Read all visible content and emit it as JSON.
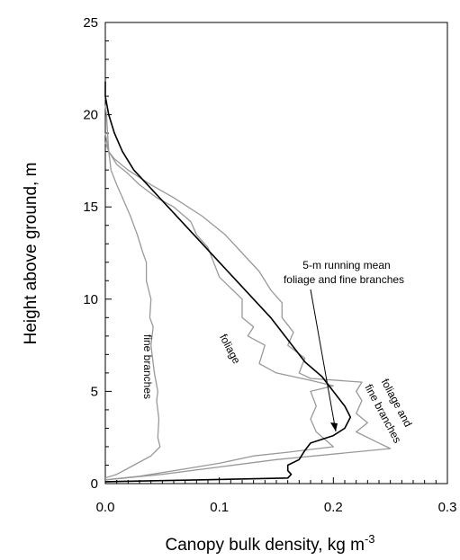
{
  "chart_data": {
    "type": "line",
    "xlabel": "Canopy bulk density, kg m",
    "xlabel_sup": "-3",
    "ylabel": "Height above ground, m",
    "xlim": [
      0,
      0.3
    ],
    "ylim": [
      0,
      25
    ],
    "xticks": [
      0.0,
      0.1,
      0.2,
      0.3
    ],
    "xtick_labels": [
      "0.0",
      "0.1",
      "0.2",
      "0.3"
    ],
    "yticks": [
      0,
      5,
      10,
      15,
      20,
      25
    ],
    "ytick_labels": [
      "0",
      "5",
      "10",
      "15",
      "20",
      "25"
    ],
    "grid": false,
    "legend": "none",
    "series": [
      {
        "key": "fine_branches",
        "color": "#999999",
        "points": [
          [
            0.0,
            0.3
          ],
          [
            0.01,
            0.5
          ],
          [
            0.025,
            1.0
          ],
          [
            0.04,
            1.5
          ],
          [
            0.048,
            2.0
          ],
          [
            0.046,
            2.5
          ],
          [
            0.047,
            3.5
          ],
          [
            0.045,
            4.5
          ],
          [
            0.046,
            5.0
          ],
          [
            0.043,
            6.0
          ],
          [
            0.042,
            6.5
          ],
          [
            0.04,
            7.5
          ],
          [
            0.042,
            8.5
          ],
          [
            0.039,
            9.0
          ],
          [
            0.04,
            10.0
          ],
          [
            0.038,
            10.5
          ],
          [
            0.036,
            11.0
          ],
          [
            0.036,
            12.0
          ],
          [
            0.033,
            12.5
          ],
          [
            0.028,
            13.5
          ],
          [
            0.022,
            14.5
          ],
          [
            0.015,
            15.5
          ],
          [
            0.01,
            16.2
          ],
          [
            0.005,
            17.0
          ],
          [
            0.004,
            17.5
          ],
          [
            0.003,
            18.0
          ],
          [
            0.002,
            19.0
          ],
          [
            0.001,
            20.0
          ],
          [
            0.0,
            20.5
          ]
        ]
      },
      {
        "key": "foliage",
        "color": "#999999",
        "points": [
          [
            0.0,
            0.2
          ],
          [
            0.03,
            0.4
          ],
          [
            0.07,
            0.8
          ],
          [
            0.1,
            1.1
          ],
          [
            0.13,
            1.5
          ],
          [
            0.16,
            1.7
          ],
          [
            0.2,
            2.0
          ],
          [
            0.185,
            2.8
          ],
          [
            0.18,
            3.5
          ],
          [
            0.185,
            4.2
          ],
          [
            0.18,
            5.0
          ],
          [
            0.2,
            5.3
          ],
          [
            0.18,
            5.6
          ],
          [
            0.15,
            6.0
          ],
          [
            0.135,
            6.5
          ],
          [
            0.14,
            7.5
          ],
          [
            0.125,
            8.0
          ],
          [
            0.13,
            8.5
          ],
          [
            0.12,
            9.0
          ],
          [
            0.12,
            10.0
          ],
          [
            0.11,
            10.6
          ],
          [
            0.1,
            11.2
          ],
          [
            0.095,
            12.0
          ],
          [
            0.09,
            12.8
          ],
          [
            0.08,
            13.5
          ],
          [
            0.075,
            14.2
          ],
          [
            0.06,
            15.0
          ],
          [
            0.045,
            15.5
          ],
          [
            0.03,
            16.2
          ],
          [
            0.02,
            16.8
          ],
          [
            0.01,
            17.3
          ],
          [
            0.003,
            18.0
          ],
          [
            0.0,
            18.5
          ]
        ]
      },
      {
        "key": "foliage_fine_branches",
        "color": "#999999",
        "points": [
          [
            0.0,
            0.2
          ],
          [
            0.05,
            0.5
          ],
          [
            0.1,
            0.9
          ],
          [
            0.15,
            1.3
          ],
          [
            0.2,
            1.6
          ],
          [
            0.25,
            1.9
          ],
          [
            0.24,
            2.2
          ],
          [
            0.22,
            2.8
          ],
          [
            0.23,
            3.3
          ],
          [
            0.22,
            3.8
          ],
          [
            0.225,
            4.5
          ],
          [
            0.22,
            5.0
          ],
          [
            0.225,
            5.5
          ],
          [
            0.18,
            5.7
          ],
          [
            0.17,
            6.0
          ],
          [
            0.175,
            6.8
          ],
          [
            0.16,
            7.5
          ],
          [
            0.165,
            8.2
          ],
          [
            0.155,
            9.0
          ],
          [
            0.155,
            9.8
          ],
          [
            0.145,
            10.5
          ],
          [
            0.135,
            11.5
          ],
          [
            0.12,
            12.5
          ],
          [
            0.105,
            13.5
          ],
          [
            0.085,
            14.5
          ],
          [
            0.06,
            15.5
          ],
          [
            0.04,
            16.2
          ],
          [
            0.02,
            17.0
          ],
          [
            0.008,
            17.6
          ],
          [
            0.003,
            18.0
          ],
          [
            0.0,
            19.0
          ]
        ]
      },
      {
        "key": "running_mean",
        "color": "#000000",
        "points": [
          [
            0.0,
            0.1
          ],
          [
            0.08,
            0.2
          ],
          [
            0.16,
            0.3
          ],
          [
            0.163,
            0.5
          ],
          [
            0.16,
            0.7
          ],
          [
            0.16,
            1.0
          ],
          [
            0.17,
            1.3
          ],
          [
            0.175,
            1.8
          ],
          [
            0.18,
            2.2
          ],
          [
            0.2,
            2.6
          ],
          [
            0.21,
            3.0
          ],
          [
            0.215,
            3.6
          ],
          [
            0.21,
            4.2
          ],
          [
            0.2,
            5.0
          ],
          [
            0.19,
            5.8
          ],
          [
            0.175,
            6.6
          ],
          [
            0.16,
            7.8
          ],
          [
            0.145,
            9.0
          ],
          [
            0.13,
            10.0
          ],
          [
            0.115,
            11.0
          ],
          [
            0.1,
            12.0
          ],
          [
            0.085,
            13.0
          ],
          [
            0.07,
            14.0
          ],
          [
            0.055,
            15.0
          ],
          [
            0.04,
            16.0
          ],
          [
            0.025,
            17.0
          ],
          [
            0.015,
            18.0
          ],
          [
            0.008,
            19.0
          ],
          [
            0.003,
            20.0
          ],
          [
            0.0,
            21.0
          ],
          [
            0.0,
            21.8
          ]
        ]
      }
    ],
    "annotations": [
      {
        "key": "fine_branches",
        "text": "fine branches"
      },
      {
        "key": "foliage",
        "text": "foliage"
      },
      {
        "key": "foliage_fine_1",
        "text": "foliage and"
      },
      {
        "key": "foliage_fine_2",
        "text": "fine branches"
      },
      {
        "key": "mean_1",
        "text": "5-m running mean"
      },
      {
        "key": "mean_2",
        "text": "foliage and fine branches"
      }
    ]
  }
}
